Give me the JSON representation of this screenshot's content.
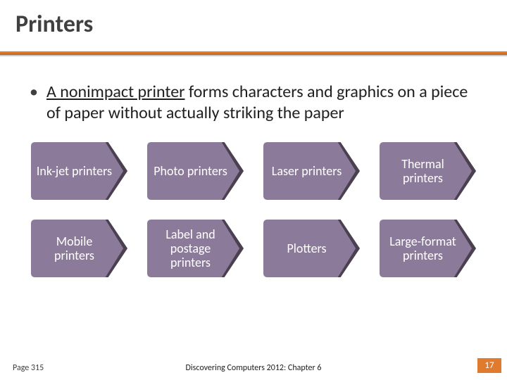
{
  "title": "Printers",
  "bullet": {
    "lead_underlined": "A nonimpact printer",
    "rest": " forms characters and graphics on a piece of paper without actually striking the paper"
  },
  "shapes": {
    "fill": "#8b7a9a",
    "dark_fill": "#4a4050",
    "stroke": "#ffffff",
    "text_color": "#ffffff",
    "items": [
      "Ink-jet printers",
      "Photo printers",
      "Laser printers",
      "Thermal printers",
      "Mobile printers",
      "Label and postage printers",
      "Plotters",
      "Large-format printers"
    ]
  },
  "footer": {
    "page_ref": "Page 315",
    "source": "Discovering Computers 2012: Chapter 6",
    "page_number": "17"
  },
  "colors": {
    "accent": "#e07a2c",
    "title_text": "#404040",
    "body_text": "#202020"
  }
}
